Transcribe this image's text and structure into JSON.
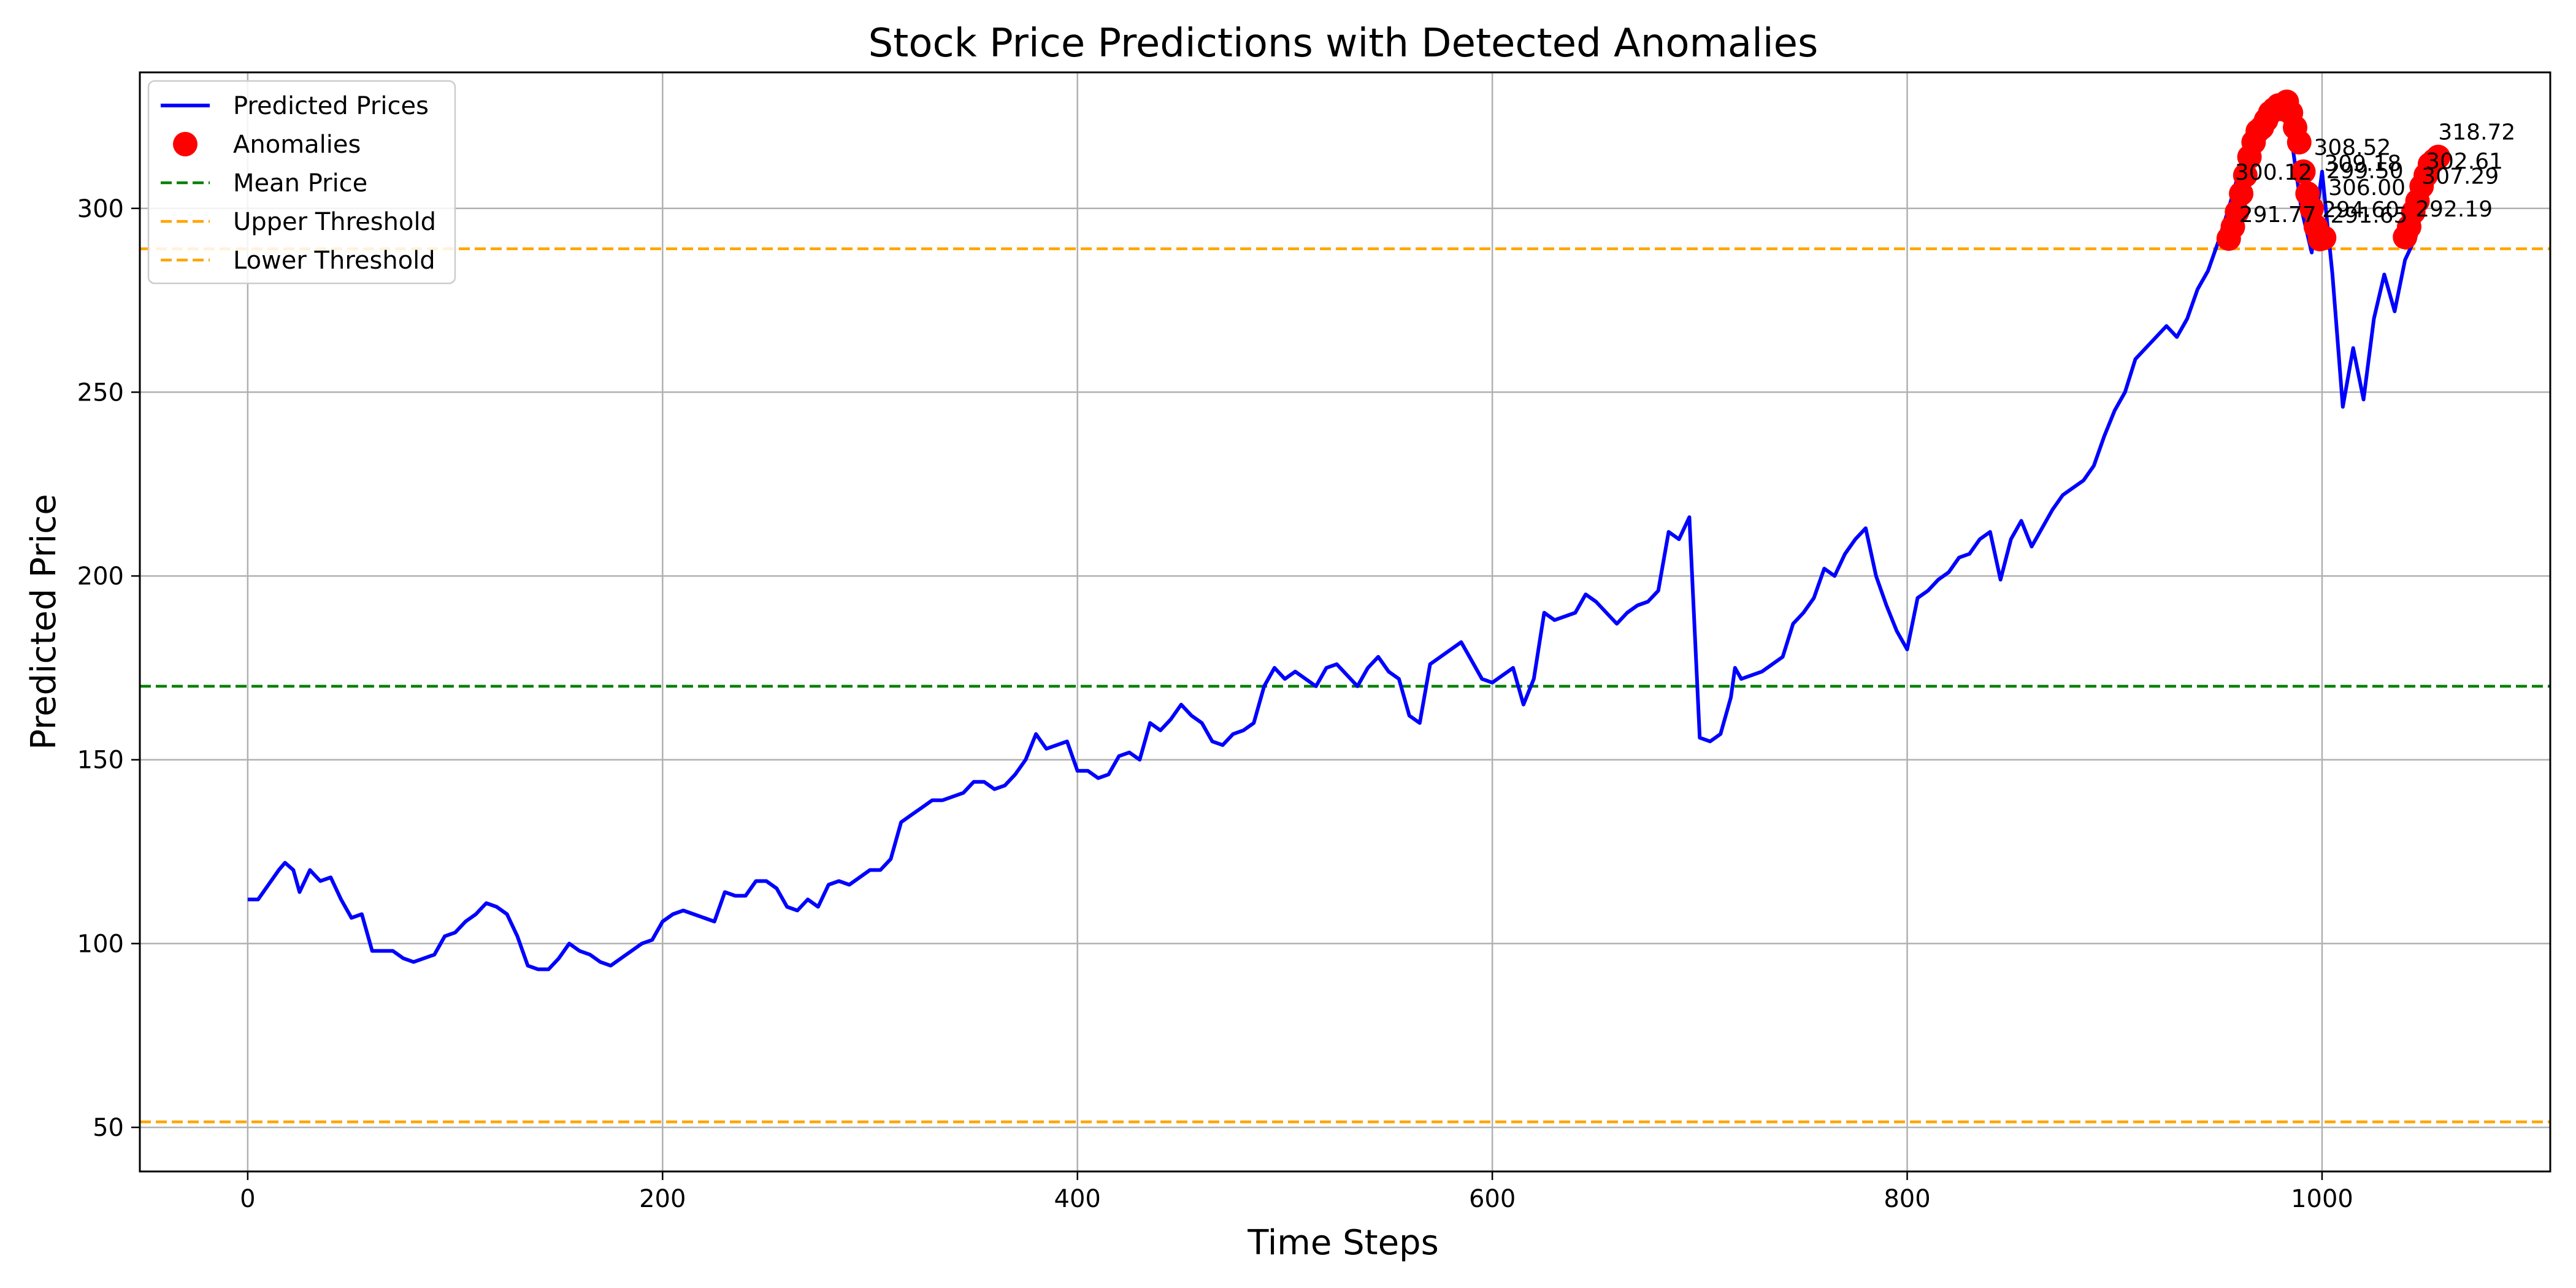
{
  "chart_data": {
    "type": "line",
    "title": "Stock Price Predictions with Detected Anomalies",
    "xlabel": "Time Steps",
    "ylabel": "Predicted Price",
    "xlim": [
      -52,
      1110
    ],
    "ylim": [
      38,
      337
    ],
    "xticks": [
      0,
      200,
      400,
      600,
      800,
      1000
    ],
    "yticks": [
      50,
      100,
      150,
      200,
      250,
      300
    ],
    "grid": true,
    "legend_position": "top-left",
    "colors": {
      "predicted": "#0000ff",
      "anomaly": "#ff0000",
      "mean": "#008000",
      "threshold": "#ffa500"
    },
    "series": [
      {
        "name": "Predicted Prices",
        "style": "line",
        "x": [
          0,
          5,
          10,
          15,
          18,
          22,
          25,
          30,
          35,
          40,
          45,
          50,
          55,
          60,
          65,
          70,
          75,
          80,
          85,
          90,
          95,
          100,
          105,
          110,
          115,
          120,
          125,
          130,
          135,
          140,
          145,
          150,
          155,
          160,
          165,
          170,
          175,
          180,
          185,
          190,
          195,
          200,
          205,
          210,
          215,
          220,
          225,
          230,
          235,
          240,
          245,
          250,
          255,
          260,
          265,
          270,
          275,
          280,
          285,
          290,
          295,
          300,
          305,
          310,
          315,
          320,
          325,
          330,
          335,
          340,
          345,
          350,
          355,
          360,
          365,
          370,
          375,
          380,
          385,
          390,
          395,
          400,
          405,
          410,
          415,
          420,
          425,
          430,
          435,
          440,
          445,
          450,
          455,
          460,
          465,
          470,
          475,
          480,
          485,
          490,
          495,
          500,
          505,
          510,
          515,
          520,
          525,
          530,
          535,
          540,
          545,
          550,
          555,
          560,
          565,
          570,
          575,
          580,
          585,
          590,
          595,
          600,
          605,
          610,
          615,
          620,
          625,
          630,
          635,
          640,
          645,
          650,
          655,
          660,
          665,
          670,
          675,
          680,
          685,
          690,
          695,
          700,
          705,
          710,
          715,
          717,
          720,
          725,
          730,
          735,
          740,
          745,
          750,
          755,
          760,
          765,
          770,
          775,
          780,
          785,
          790,
          795,
          800,
          805,
          810,
          815,
          820,
          825,
          830,
          835,
          840,
          845,
          850,
          855,
          860,
          865,
          870,
          875,
          880,
          885,
          890,
          895,
          900,
          905,
          910,
          915,
          920,
          925,
          930,
          935,
          940,
          945,
          950,
          955,
          960,
          965,
          970,
          975,
          980,
          985,
          990,
          995,
          1000,
          1005,
          1010,
          1015,
          1020,
          1025,
          1030,
          1035,
          1040,
          1045,
          1050,
          1055
        ],
        "y": [
          112,
          112,
          116,
          120,
          122,
          120,
          114,
          120,
          117,
          118,
          112,
          107,
          108,
          98,
          98,
          98,
          96,
          95,
          96,
          97,
          102,
          103,
          106,
          108,
          111,
          110,
          108,
          102,
          94,
          93,
          93,
          96,
          100,
          98,
          97,
          95,
          94,
          96,
          98,
          100,
          101,
          106,
          108,
          109,
          108,
          107,
          106,
          114,
          113,
          113,
          117,
          117,
          115,
          110,
          109,
          112,
          110,
          116,
          117,
          116,
          118,
          120,
          120,
          123,
          133,
          135,
          137,
          139,
          139,
          140,
          141,
          144,
          144,
          142,
          143,
          146,
          150,
          157,
          153,
          154,
          155,
          147,
          147,
          145,
          146,
          151,
          152,
          150,
          160,
          158,
          161,
          165,
          162,
          160,
          155,
          154,
          157,
          158,
          160,
          170,
          175,
          172,
          174,
          172,
          170,
          175,
          176,
          173,
          170,
          175,
          178,
          174,
          172,
          162,
          160,
          176,
          178,
          180,
          182,
          177,
          172,
          171,
          173,
          175,
          165,
          172,
          190,
          188,
          189,
          190,
          195,
          193,
          190,
          187,
          190,
          192,
          193,
          196,
          212,
          210,
          216,
          156,
          155,
          157,
          167,
          175,
          172,
          173,
          174,
          176,
          178,
          187,
          190,
          194,
          202,
          200,
          206,
          210,
          213,
          200,
          192,
          185,
          180,
          194,
          196,
          199,
          201,
          205,
          206,
          210,
          212,
          199,
          210,
          215,
          208,
          213,
          218,
          222,
          224,
          226,
          230,
          238,
          245,
          250,
          259,
          262,
          265,
          268,
          265,
          270,
          278,
          283,
          291,
          300,
          310,
          318,
          322,
          326,
          328,
          320,
          300,
          288,
          310,
          282,
          246,
          262,
          248,
          270,
          282,
          272,
          286,
          292,
          305,
          315
        ],
        "color": "#0000ff"
      },
      {
        "name": "Anomalies",
        "style": "scatter",
        "x": [
          955,
          957,
          959,
          961,
          963,
          965,
          967,
          969,
          971,
          973,
          975,
          977,
          979,
          981,
          983,
          985,
          987,
          989,
          991,
          993,
          995,
          997,
          999,
          1001,
          1040,
          1042,
          1044,
          1046,
          1048,
          1050,
          1052,
          1054,
          1056
        ],
        "y": [
          291.77,
          295,
          299,
          304,
          309,
          314,
          318,
          321,
          322,
          324,
          326,
          327,
          328,
          327,
          329,
          326,
          322,
          318,
          310,
          304,
          300,
          295,
          291.65,
          292,
          292.19,
          295,
          299,
          302,
          306,
          309,
          312,
          313,
          314
        ],
        "color": "#ff0000"
      },
      {
        "name": "Mean Price",
        "style": "hline",
        "y": 170,
        "color": "#008000"
      },
      {
        "name": "Upper Threshold",
        "style": "hline",
        "y": 289,
        "color": "#ffa500"
      },
      {
        "name": "Lower Threshold",
        "style": "hline",
        "y": 51.5,
        "color": "#ffa500"
      }
    ],
    "annotations": [
      "318.72",
      "300.12",
      "299.50",
      "307.29",
      "294.60",
      "292.19",
      "291.65",
      "291.77",
      "308.52",
      "302.61",
      "306.00",
      "309.18"
    ]
  }
}
